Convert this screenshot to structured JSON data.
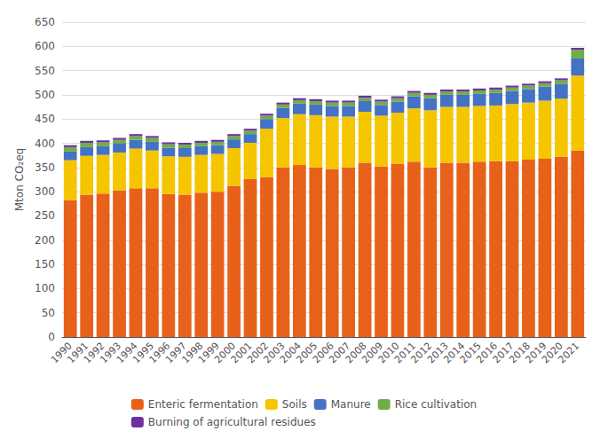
{
  "chart_data": {
    "type": "bar",
    "stacked": true,
    "categories": [
      "1990",
      "1991",
      "1992",
      "1993",
      "1994",
      "1995",
      "1996",
      "1997",
      "1998",
      "1999",
      "2000",
      "2001",
      "2002",
      "2003",
      "2004",
      "2005",
      "2006",
      "2007",
      "2008",
      "2009",
      "2010",
      "2011",
      "2012",
      "2013",
      "2014",
      "2015",
      "2016",
      "2017",
      "2018",
      "2019",
      "2020",
      "2021"
    ],
    "series": [
      {
        "name": "Enteric fermentation",
        "color": "#E8611A",
        "values": [
          283,
          294,
          296,
          303,
          307,
          307,
          295,
          294,
          298,
          300,
          312,
          326,
          330,
          350,
          355,
          350,
          347,
          350,
          360,
          352,
          358,
          362,
          350,
          360,
          360,
          362,
          363,
          363,
          366,
          368,
          372,
          385
        ]
      },
      {
        "name": "Soils",
        "color": "#F5C500",
        "values": [
          82,
          80,
          80,
          78,
          82,
          78,
          78,
          78,
          78,
          78,
          78,
          75,
          100,
          102,
          105,
          108,
          108,
          105,
          105,
          105,
          105,
          110,
          118,
          115,
          115,
          115,
          115,
          118,
          118,
          120,
          120,
          155
        ]
      },
      {
        "name": "Manure",
        "color": "#4472C4",
        "values": [
          18,
          18,
          18,
          18,
          18,
          18,
          18,
          18,
          18,
          18,
          18,
          18,
          20,
          21,
          22,
          22,
          22,
          22,
          22,
          22,
          23,
          25,
          25,
          25,
          25,
          25,
          26,
          27,
          28,
          29,
          30,
          35
        ]
      },
      {
        "name": "Rice cultivation",
        "color": "#70AD47",
        "values": [
          9,
          9,
          8,
          8,
          8,
          8,
          7,
          7,
          7,
          7,
          7,
          7,
          7,
          7,
          7,
          7,
          7,
          7,
          7,
          7,
          7,
          7,
          7,
          7,
          7,
          7,
          7,
          7,
          7,
          7,
          8,
          18
        ]
      },
      {
        "name": "Burning of agricultural residues",
        "color": "#7030A0",
        "values": [
          4,
          4,
          4,
          4,
          4,
          4,
          4,
          4,
          4,
          4,
          4,
          4,
          4,
          4,
          4,
          4,
          4,
          4,
          4,
          4,
          4,
          4,
          4,
          4,
          4,
          4,
          4,
          4,
          4,
          4,
          4,
          4
        ]
      }
    ],
    "ylabel": "Mton CO₂eq",
    "ylim": [
      0,
      650
    ],
    "yticks": [
      0,
      50,
      100,
      150,
      200,
      250,
      300,
      350,
      400,
      450,
      500,
      550,
      600,
      650
    ],
    "grid": true,
    "legend": "bottom"
  }
}
